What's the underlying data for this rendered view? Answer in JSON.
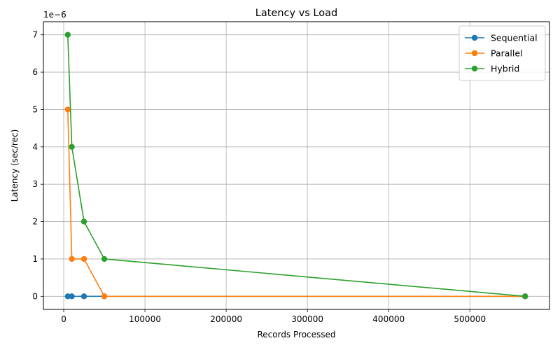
{
  "chart_data": {
    "type": "line",
    "title": "Latency vs Load",
    "xlabel": "Records Processed",
    "ylabel": "Latency (sec/rec)",
    "y_multiplier_label": "1e−6",
    "xlim": [
      -25000,
      598000
    ],
    "ylim": [
      -3.5e-07,
      7.35e-06
    ],
    "x_ticks": [
      0,
      100000,
      200000,
      300000,
      400000,
      500000
    ],
    "x_tick_labels": [
      "0",
      "100000",
      "200000",
      "300000",
      "400000",
      "500000"
    ],
    "y_ticks": [
      0,
      1e-06,
      2e-06,
      3e-06,
      4e-06,
      5e-06,
      6e-06,
      7e-06
    ],
    "y_tick_labels": [
      "0",
      "1",
      "2",
      "3",
      "4",
      "5",
      "6",
      "7"
    ],
    "grid": true,
    "legend_position": "top-right",
    "series": [
      {
        "name": "Sequential",
        "color": "#1f77b4",
        "points": [
          [
            5000,
            0
          ],
          [
            10000,
            0
          ],
          [
            25000,
            0
          ],
          [
            50000,
            0
          ],
          [
            568000,
            0
          ]
        ]
      },
      {
        "name": "Parallel",
        "color": "#ff7f0e",
        "points": [
          [
            5000,
            5e-06
          ],
          [
            10000,
            1e-06
          ],
          [
            25000,
            1e-06
          ],
          [
            50000,
            0
          ],
          [
            568000,
            0
          ]
        ]
      },
      {
        "name": "Hybrid",
        "color": "#2ca02c",
        "points": [
          [
            5000,
            7e-06
          ],
          [
            10000,
            4e-06
          ],
          [
            25000,
            2e-06
          ],
          [
            50000,
            1e-06
          ],
          [
            568000,
            0
          ]
        ]
      }
    ]
  }
}
